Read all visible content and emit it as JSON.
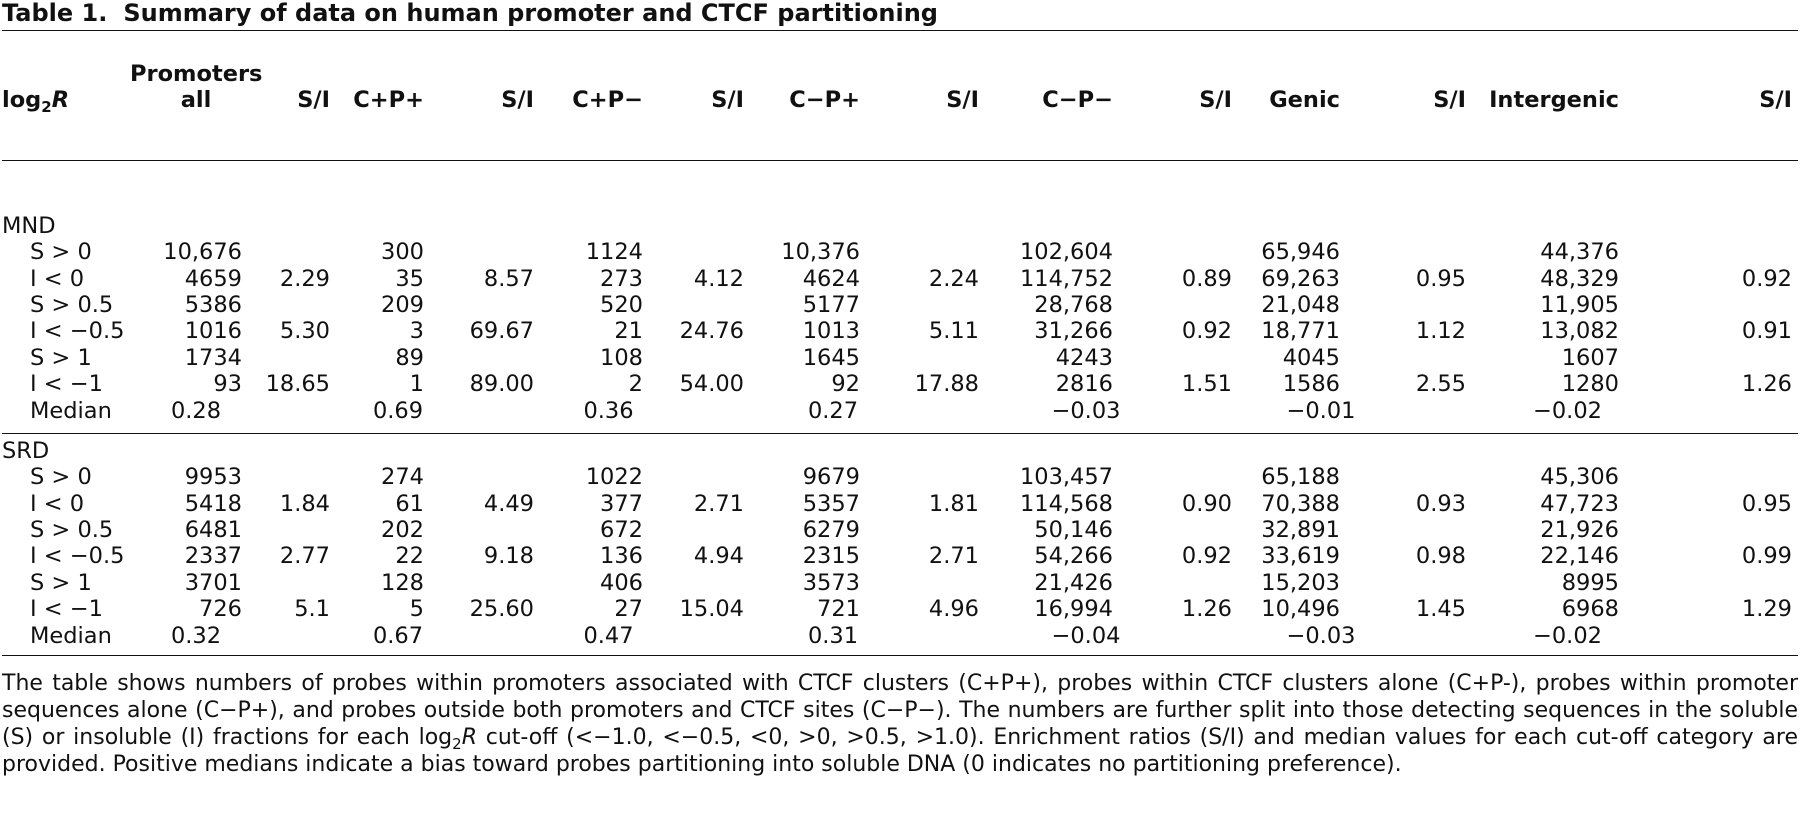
{
  "caption": {
    "label": "Table 1.",
    "title": "Summary of data on human promoter and CTCF partitioning"
  },
  "header": {
    "log_base": "log",
    "log_sub": "2",
    "log_var": "R",
    "columns": [
      "Promoters all",
      "S/I",
      "C+P+",
      "S/I",
      "C+P−",
      "S/I",
      "C−P+",
      "S/I",
      "C−P−",
      "S/I",
      "Genic",
      "S/I",
      "Intergenic",
      "S/I"
    ],
    "promoters_line1": "Promoters",
    "promoters_line2": "all"
  },
  "groups": [
    {
      "name": "MND",
      "rows": [
        {
          "label": "S > 0",
          "cells": [
            "10,676",
            "",
            "300",
            "",
            "1124",
            "",
            "10,376",
            "",
            "102,604",
            "",
            "65,946",
            "",
            "44,376",
            ""
          ]
        },
        {
          "label": "I < 0",
          "cells": [
            "4659",
            "2.29",
            "35",
            "8.57",
            "273",
            "4.12",
            "4624",
            "2.24",
            "114,752",
            "0.89",
            "69,263",
            "0.95",
            "48,329",
            "0.92"
          ]
        },
        {
          "label": "S > 0.5",
          "cells": [
            "5386",
            "",
            "209",
            "",
            "520",
            "",
            "5177",
            "",
            "28,768",
            "",
            "21,048",
            "",
            "11,905",
            ""
          ]
        },
        {
          "label": "I < −0.5",
          "cells": [
            "1016",
            "5.30",
            "3",
            "69.67",
            "21",
            "24.76",
            "1013",
            "5.11",
            "31,266",
            "0.92",
            "18,771",
            "1.12",
            "13,082",
            "0.91"
          ]
        },
        {
          "label": "S > 1",
          "cells": [
            "1734",
            "",
            "89",
            "",
            "108",
            "",
            "1645",
            "",
            "4243",
            "",
            "4045",
            "",
            "1607",
            ""
          ]
        },
        {
          "label": "I < −1",
          "cells": [
            "93",
            "18.65",
            "1",
            "89.00",
            "2",
            "54.00",
            "92",
            "17.88",
            "2816",
            "1.51",
            "1586",
            "2.55",
            "1280",
            "1.26"
          ]
        },
        {
          "label": "Median",
          "cells": [
            "0.28",
            "",
            "0.69",
            "",
            "0.36",
            "",
            "0.27",
            "",
            "−0.03",
            "",
            "−0.01",
            "",
            "−0.02",
            ""
          ]
        }
      ]
    },
    {
      "name": "SRD",
      "rows": [
        {
          "label": "S > 0",
          "cells": [
            "9953",
            "",
            "274",
            "",
            "1022",
            "",
            "9679",
            "",
            "103,457",
            "",
            "65,188",
            "",
            "45,306",
            ""
          ]
        },
        {
          "label": "I < 0",
          "cells": [
            "5418",
            "1.84",
            "61",
            "4.49",
            "377",
            "2.71",
            "5357",
            "1.81",
            "114,568",
            "0.90",
            "70,388",
            "0.93",
            "47,723",
            "0.95"
          ]
        },
        {
          "label": "S > 0.5",
          "cells": [
            "6481",
            "",
            "202",
            "",
            "672",
            "",
            "6279",
            "",
            "50,146",
            "",
            "32,891",
            "",
            "21,926",
            ""
          ]
        },
        {
          "label": "I < −0.5",
          "cells": [
            "2337",
            "2.77",
            "22",
            "9.18",
            "136",
            "4.94",
            "2315",
            "2.71",
            "54,266",
            "0.92",
            "33,619",
            "0.98",
            "22,146",
            "0.99"
          ]
        },
        {
          "label": "S > 1",
          "cells": [
            "3701",
            "",
            "128",
            "",
            "406",
            "",
            "3573",
            "",
            "21,426",
            "",
            "15,203",
            "",
            "8995",
            ""
          ]
        },
        {
          "label": "I < −1",
          "cells": [
            "726",
            "5.1",
            "5",
            "25.60",
            "27",
            "15.04",
            "721",
            "4.96",
            "16,994",
            "1.26",
            "10,496",
            "1.45",
            "6968",
            "1.29"
          ]
        },
        {
          "label": "Median",
          "cells": [
            "0.32",
            "",
            "0.67",
            "",
            "0.47",
            "",
            "0.31",
            "",
            "−0.04",
            "",
            "−0.03",
            "",
            "−0.02",
            ""
          ]
        }
      ]
    }
  ],
  "footnote": {
    "part1": "The table shows numbers of probes within promoters associated with CTCF clusters (C+P+), probes within CTCF clusters alone (C+P-), probes within promoter sequences alone (C−P+), and probes outside both promoters and CTCF sites (C−P−). The numbers are further split into those detecting sequences in the soluble (S) or insoluble (I) fractions for each ",
    "log_base": "log",
    "log_sub": "2",
    "log_var": "R",
    "part2": " cut-off (<−1.0, <−0.5, <0, >0, >0.5, >1.0). Enrichment ratios (S/I) and median values for each cut-off category are provided. Positive medians indicate a bias toward probes partitioning into soluble DNA (0 indicates no partitioning preference)."
  }
}
